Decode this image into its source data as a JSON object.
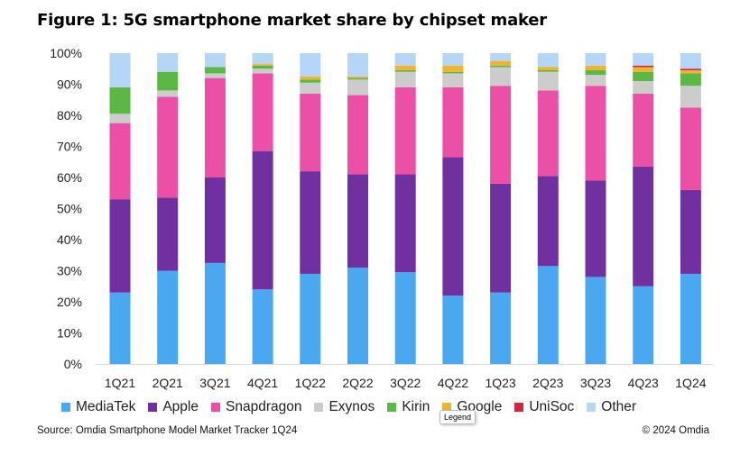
{
  "figure_title": "Figure 1: 5G smartphone market share by chipset maker",
  "source": "Source: Omdia Smartphone Model Market Tracker 1Q24",
  "copyright": "© 2024 Omdia",
  "tooltip": "Legend",
  "chart_data": {
    "type": "bar",
    "stacked": true,
    "title": "Figure 1: 5G smartphone market share by chipset maker",
    "xlabel": "",
    "ylabel": "",
    "ylim": [
      0,
      100
    ],
    "yticks": [
      "0%",
      "10%",
      "20%",
      "30%",
      "40%",
      "50%",
      "60%",
      "70%",
      "80%",
      "90%",
      "100%"
    ],
    "grid": false,
    "legend_position": "bottom",
    "categories": [
      "1Q21",
      "2Q21",
      "3Q21",
      "4Q21",
      "1Q22",
      "2Q22",
      "3Q22",
      "4Q22",
      "1Q23",
      "2Q23",
      "3Q23",
      "4Q23",
      "1Q24"
    ],
    "series": [
      {
        "name": "MediaTek",
        "color": "#4aa8f0",
        "values": [
          23,
          30,
          32.5,
          24,
          29,
          31,
          29.5,
          22,
          23,
          31.5,
          28,
          25,
          29
        ]
      },
      {
        "name": "Apple",
        "color": "#7030a0",
        "values": [
          30,
          23.5,
          27.5,
          44.5,
          33,
          30,
          31.5,
          44.5,
          35,
          29,
          31,
          38.5,
          27
        ]
      },
      {
        "name": "Snapdragon",
        "color": "#ec4fa6",
        "values": [
          24.5,
          32.5,
          32,
          25,
          25,
          25.5,
          28,
          22.5,
          31.5,
          27.5,
          30.5,
          23.5,
          26.5
        ]
      },
      {
        "name": "Exynos",
        "color": "#cccccc",
        "values": [
          3,
          2,
          1.5,
          1.5,
          3.5,
          5,
          5,
          4.5,
          6,
          6,
          3.5,
          4,
          7
        ]
      },
      {
        "name": "Kirin",
        "color": "#5cb845",
        "values": [
          8.5,
          6,
          2,
          1,
          1,
          0.5,
          0.5,
          0.5,
          0.5,
          0.5,
          1.5,
          3,
          4
        ]
      },
      {
        "name": "Google",
        "color": "#f0b42e",
        "values": [
          0,
          0,
          0,
          0.5,
          1,
          0.5,
          1.5,
          2,
          1.5,
          1,
          1.5,
          1.5,
          1
        ]
      },
      {
        "name": "UniSoc",
        "color": "#d3263a",
        "values": [
          0,
          0,
          0,
          0,
          0,
          0,
          0,
          0,
          0,
          0,
          0,
          0.5,
          0.5
        ]
      },
      {
        "name": "Other",
        "color": "#b5d6f6",
        "values": [
          11,
          6,
          4.5,
          3.5,
          7.5,
          7.5,
          4,
          4,
          2.5,
          4.5,
          4,
          4,
          5
        ]
      }
    ]
  }
}
